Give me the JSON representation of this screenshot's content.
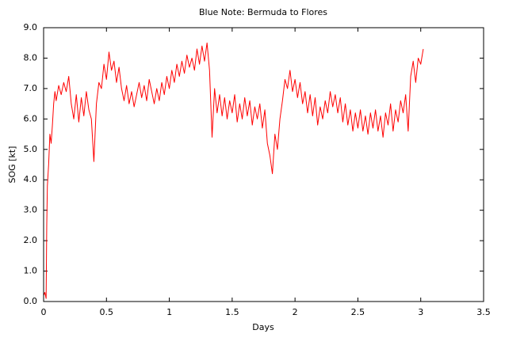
{
  "chart_data": {
    "type": "line",
    "title": "Blue Note: Bermuda to Flores",
    "xlabel": "Days",
    "ylabel": "SOG [kt]",
    "grid": false,
    "xlim": [
      0,
      3.5
    ],
    "ylim": [
      0,
      9
    ],
    "xticks": [
      0,
      0.5,
      1,
      1.5,
      2,
      2.5,
      3,
      3.5
    ],
    "yticks": [
      {
        "value": 0,
        "label": "0.0"
      },
      {
        "value": 1,
        "label": "1.0"
      },
      {
        "value": 2,
        "label": "2.0"
      },
      {
        "value": 3,
        "label": "3.0"
      },
      {
        "value": 4,
        "label": "4.0"
      },
      {
        "value": 5,
        "label": "5.0"
      },
      {
        "value": 6,
        "label": "6.0"
      },
      {
        "value": 7,
        "label": "7.0"
      },
      {
        "value": 8,
        "label": "8.0"
      },
      {
        "value": 9,
        "label": "9.0"
      }
    ],
    "x": [
      0,
      0.01,
      0.02,
      0.025,
      0.03,
      0.04,
      0.05,
      0.06,
      0.07,
      0.08,
      0.09,
      0.1,
      0.12,
      0.14,
      0.16,
      0.18,
      0.2,
      0.22,
      0.24,
      0.26,
      0.28,
      0.3,
      0.32,
      0.34,
      0.36,
      0.38,
      0.4,
      0.42,
      0.44,
      0.46,
      0.48,
      0.5,
      0.52,
      0.54,
      0.56,
      0.58,
      0.6,
      0.62,
      0.64,
      0.66,
      0.68,
      0.7,
      0.72,
      0.74,
      0.76,
      0.78,
      0.8,
      0.82,
      0.84,
      0.86,
      0.88,
      0.9,
      0.92,
      0.94,
      0.96,
      0.98,
      1.0,
      1.02,
      1.04,
      1.06,
      1.08,
      1.1,
      1.12,
      1.14,
      1.16,
      1.18,
      1.2,
      1.22,
      1.24,
      1.26,
      1.28,
      1.3,
      1.32,
      1.34,
      1.36,
      1.38,
      1.4,
      1.42,
      1.44,
      1.46,
      1.48,
      1.5,
      1.52,
      1.54,
      1.56,
      1.58,
      1.6,
      1.62,
      1.64,
      1.66,
      1.68,
      1.7,
      1.72,
      1.74,
      1.76,
      1.78,
      1.8,
      1.82,
      1.84,
      1.86,
      1.88,
      1.9,
      1.92,
      1.94,
      1.96,
      1.98,
      2.0,
      2.02,
      2.04,
      2.06,
      2.08,
      2.1,
      2.12,
      2.14,
      2.16,
      2.18,
      2.2,
      2.22,
      2.24,
      2.26,
      2.28,
      2.3,
      2.32,
      2.34,
      2.36,
      2.38,
      2.4,
      2.42,
      2.44,
      2.46,
      2.48,
      2.5,
      2.52,
      2.54,
      2.56,
      2.58,
      2.6,
      2.62,
      2.64,
      2.66,
      2.68,
      2.7,
      2.72,
      2.74,
      2.76,
      2.78,
      2.8,
      2.82,
      2.84,
      2.86,
      2.88,
      2.9,
      2.92,
      2.94,
      2.96,
      2.98,
      3.0,
      3.02
    ],
    "series": [
      {
        "color": "#ff0000",
        "values": [
          0.2,
          0.3,
          0.1,
          2.5,
          3.8,
          4.5,
          5.5,
          5.2,
          5.8,
          6.5,
          6.9,
          6.6,
          7.1,
          6.8,
          7.2,
          6.9,
          7.4,
          6.5,
          6.0,
          6.8,
          5.9,
          6.7,
          6.1,
          6.9,
          6.3,
          6.0,
          4.6,
          6.5,
          7.2,
          7.0,
          7.8,
          7.3,
          8.2,
          7.6,
          7.9,
          7.2,
          7.7,
          7.0,
          6.6,
          7.1,
          6.5,
          6.9,
          6.4,
          6.8,
          7.2,
          6.7,
          7.1,
          6.6,
          7.3,
          6.9,
          6.5,
          7.0,
          6.6,
          7.2,
          6.8,
          7.4,
          7.0,
          7.6,
          7.2,
          7.8,
          7.4,
          7.9,
          7.5,
          8.1,
          7.7,
          8.0,
          7.6,
          8.3,
          7.8,
          8.4,
          7.9,
          8.5,
          7.6,
          5.4,
          7.0,
          6.2,
          6.8,
          6.1,
          6.7,
          6.0,
          6.6,
          6.2,
          6.8,
          5.9,
          6.5,
          6.0,
          6.7,
          6.1,
          6.6,
          5.8,
          6.4,
          6.0,
          6.5,
          5.7,
          6.3,
          5.2,
          4.8,
          4.2,
          5.5,
          5.0,
          6.0,
          6.6,
          7.3,
          7.0,
          7.6,
          6.9,
          7.3,
          6.7,
          7.2,
          6.5,
          6.9,
          6.2,
          6.8,
          6.1,
          6.7,
          5.8,
          6.4,
          6.0,
          6.6,
          6.2,
          6.9,
          6.4,
          6.8,
          6.2,
          6.7,
          5.9,
          6.5,
          5.8,
          6.3,
          5.6,
          6.2,
          5.7,
          6.3,
          5.6,
          6.1,
          5.5,
          6.2,
          5.7,
          6.3,
          5.6,
          6.1,
          5.4,
          6.2,
          5.8,
          6.5,
          5.6,
          6.3,
          5.9,
          6.6,
          6.2,
          6.8,
          5.6,
          7.4,
          7.9,
          7.2,
          8.0,
          7.8,
          8.3
        ]
      }
    ]
  }
}
